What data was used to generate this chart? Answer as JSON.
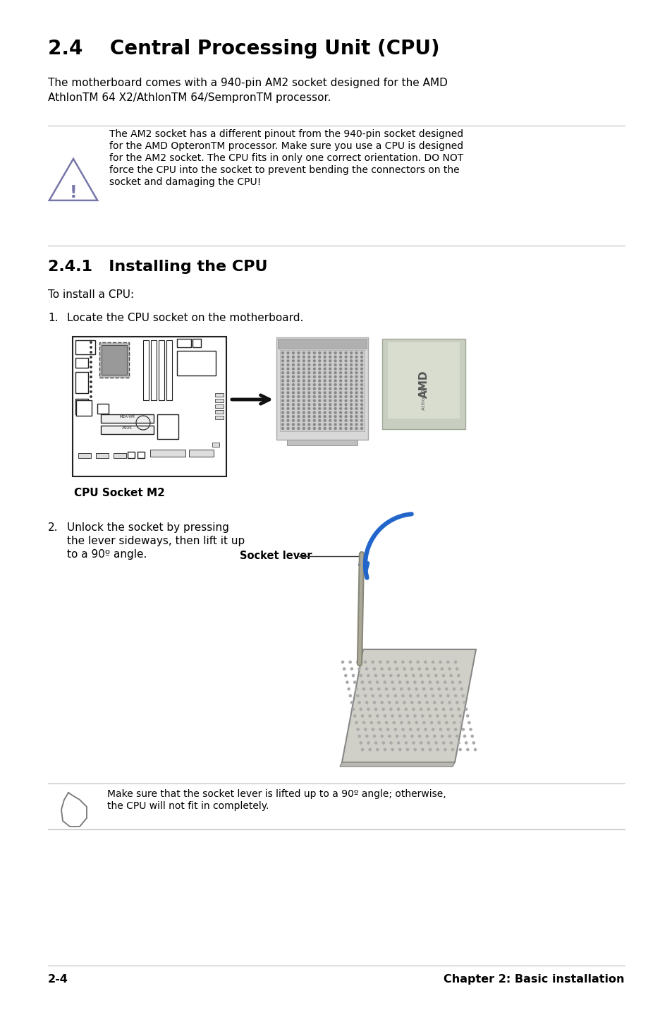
{
  "bg_color": "#ffffff",
  "title": "2.4    Central Processing Unit (CPU)",
  "title_fontsize": 20,
  "subtitle_text": "The motherboard comes with a 940-pin AM2 socket designed for the AMD\nAthlonTM 64 X2/AthlonTM 64/SempronTM processor.",
  "warning_text_lines": [
    "The AM2 socket has a different pinout from the 940-pin socket designed",
    "for the AMD OpteronTM processor. Make sure you use a CPU is designed",
    "for the AM2 socket. The CPU fits in only one correct orientation. DO NOT",
    "force the CPU into the socket to prevent bending the connectors on the",
    "socket and damaging the CPU!"
  ],
  "section241_title": "2.4.1   Installing the CPU",
  "step1_text": "To install a CPU:",
  "step1_num": "1.",
  "step1_desc": "Locate the CPU socket on the motherboard.",
  "cpu_socket_label": "CPU Socket M2",
  "step2_num": "2.",
  "step2_desc_lines": [
    "Unlock the socket by pressing",
    "the lever sideways, then lift it up",
    "to a 90º angle."
  ],
  "socket_lever_label": "Socket lever",
  "note_text_lines": [
    "Make sure that the socket lever is lifted up to a 90º angle; otherwise,",
    "the CPU will not fit in completely."
  ],
  "footer_left": "2-4",
  "footer_right": "Chapter 2: Basic installation",
  "text_color": "#000000",
  "gray_line_color": "#bbbbbb"
}
